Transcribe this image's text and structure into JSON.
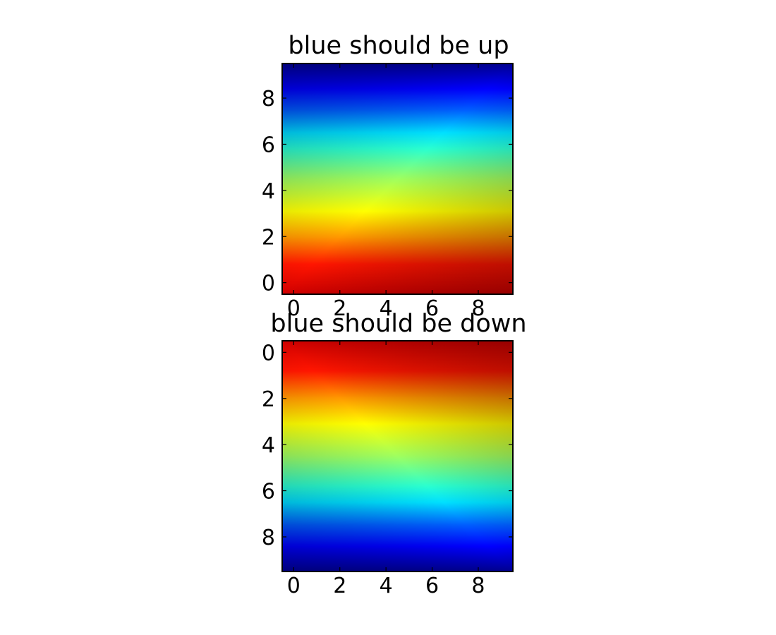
{
  "chart_data": [
    {
      "type": "heatmap",
      "title": "blue should be up",
      "colormap": "jet",
      "y_axis": "inverted",
      "xlim": [
        -0.5,
        9.5
      ],
      "ylim": [
        9.5,
        -0.5
      ],
      "x_ticks": [
        0,
        2,
        4,
        6,
        8
      ],
      "y_ticks": [
        0,
        2,
        4,
        6,
        8
      ],
      "x_tick_labels": [
        "0",
        "2",
        "4",
        "6",
        "8"
      ],
      "y_tick_labels": [
        "0",
        "2",
        "4",
        "6",
        "8"
      ],
      "grid": false,
      "values_shown_as_color": {
        "description_of_gradient": "row 0 = dark blue (low), row 9 = dark red (high), slight increase left to right",
        "row_range": [
          0,
          9
        ],
        "col_range": [
          0,
          9
        ]
      }
    },
    {
      "type": "heatmap",
      "title": "blue should be down",
      "colormap": "jet",
      "y_axis": "normal",
      "xlim": [
        -0.5,
        9.5
      ],
      "ylim": [
        -0.5,
        9.5
      ],
      "x_ticks": [
        0,
        2,
        4,
        6,
        8
      ],
      "y_ticks": [
        0,
        2,
        4,
        6,
        8
      ],
      "x_tick_labels": [
        "0",
        "2",
        "4",
        "6",
        "8"
      ],
      "y_tick_labels": [
        "0",
        "2",
        "4",
        "6",
        "8"
      ],
      "grid": false,
      "values_shown_as_color": {
        "description_of_gradient": "row 0 = dark blue (low), row 9 = dark red (high), slight increase left to right",
        "row_range": [
          0,
          9
        ],
        "col_range": [
          0,
          9
        ]
      }
    }
  ]
}
